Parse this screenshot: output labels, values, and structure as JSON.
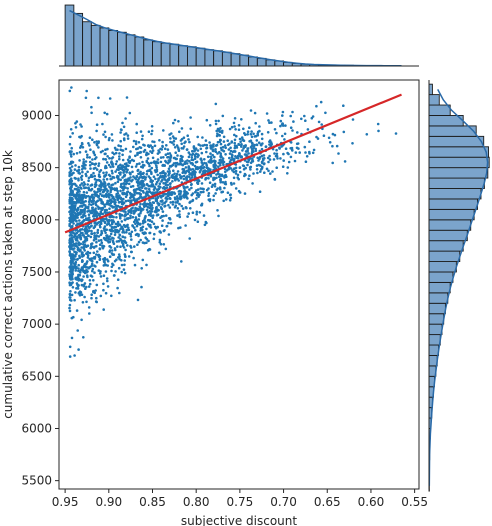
{
  "chart_data": {
    "type": "scatter",
    "kind": "jointplot with marginal histograms, kde curves and linear regression line",
    "xlabel": "subjective discount",
    "ylabel": "cumulative correct actions taken at step 10k",
    "x_axis_inverted": true,
    "xlim": [
      0.957,
      0.545
    ],
    "ylim": [
      5420,
      9340
    ],
    "x_ticks": [
      0.95,
      0.9,
      0.85,
      0.8,
      0.75,
      0.7,
      0.65,
      0.6,
      0.55
    ],
    "x_tick_labels": [
      "0.95",
      "0.90",
      "0.85",
      "0.80",
      "0.75",
      "0.70",
      "0.65",
      "0.60",
      "0.55"
    ],
    "y_ticks": [
      5500,
      6000,
      6500,
      7000,
      7500,
      8000,
      8500,
      9000
    ],
    "y_tick_labels": [
      "5500",
      "6000",
      "6500",
      "7000",
      "7500",
      "8000",
      "8500",
      "9000"
    ],
    "grid": false,
    "colors": {
      "points": "#1f77b4",
      "regression": "#d62728",
      "hist_fill": "#7ba4cc",
      "hist_edge": "#1a1a1a",
      "kde": "#2a6aa8"
    },
    "regression_line": {
      "x": [
        0.95,
        0.565
      ],
      "y": [
        7880,
        9200
      ]
    },
    "scatter_model": {
      "n_points": 3000,
      "x_range": [
        0.945,
        0.565
      ],
      "y_mean_at_x": [
        [
          0.945,
          7900
        ],
        [
          0.9,
          8120
        ],
        [
          0.85,
          8290
        ],
        [
          0.8,
          8460
        ],
        [
          0.75,
          8610
        ],
        [
          0.7,
          8720
        ],
        [
          0.6,
          8850
        ]
      ],
      "y_spread_at_x": [
        [
          0.945,
          700
        ],
        [
          0.9,
          560
        ],
        [
          0.85,
          430
        ],
        [
          0.8,
          330
        ],
        [
          0.75,
          260
        ],
        [
          0.7,
          220
        ],
        [
          0.6,
          200
        ]
      ],
      "y_min": 5520,
      "y_max": 9280
    },
    "x_marginal_histogram": {
      "bin_edges": [
        0.95,
        0.94,
        0.93,
        0.92,
        0.91,
        0.9,
        0.89,
        0.88,
        0.87,
        0.86,
        0.85,
        0.84,
        0.83,
        0.82,
        0.81,
        0.8,
        0.79,
        0.78,
        0.77,
        0.76,
        0.75,
        0.74,
        0.73,
        0.72,
        0.71,
        0.7,
        0.69,
        0.68,
        0.67,
        0.66,
        0.65,
        0.64,
        0.63,
        0.62,
        0.61,
        0.6,
        0.59,
        0.58,
        0.57,
        0.56
      ],
      "counts": [
        168,
        145,
        122,
        112,
        105,
        98,
        93,
        86,
        80,
        72,
        67,
        63,
        60,
        56,
        53,
        49,
        45,
        42,
        38,
        34,
        30,
        25,
        21,
        17,
        14,
        10,
        7,
        5,
        4,
        3,
        3,
        2,
        2,
        1,
        1,
        1,
        1,
        1,
        0
      ]
    },
    "y_marginal_histogram": {
      "bin_edges": [
        5400,
        5500,
        5600,
        5700,
        5800,
        5900,
        6000,
        6100,
        6200,
        6300,
        6400,
        6500,
        6600,
        6700,
        6800,
        6900,
        7000,
        7100,
        7200,
        7300,
        7400,
        7500,
        7600,
        7700,
        7800,
        7900,
        8000,
        8100,
        8200,
        8300,
        8400,
        8500,
        8600,
        8700,
        8800,
        8900,
        9000,
        9100,
        9200,
        9300
      ],
      "counts": [
        1,
        1,
        1,
        2,
        2,
        4,
        6,
        8,
        10,
        13,
        16,
        20,
        24,
        28,
        33,
        38,
        43,
        48,
        55,
        62,
        70,
        80,
        90,
        100,
        112,
        122,
        132,
        142,
        152,
        162,
        172,
        176,
        174,
        160,
        138,
        100,
        62,
        30,
        10
      ]
    }
  }
}
